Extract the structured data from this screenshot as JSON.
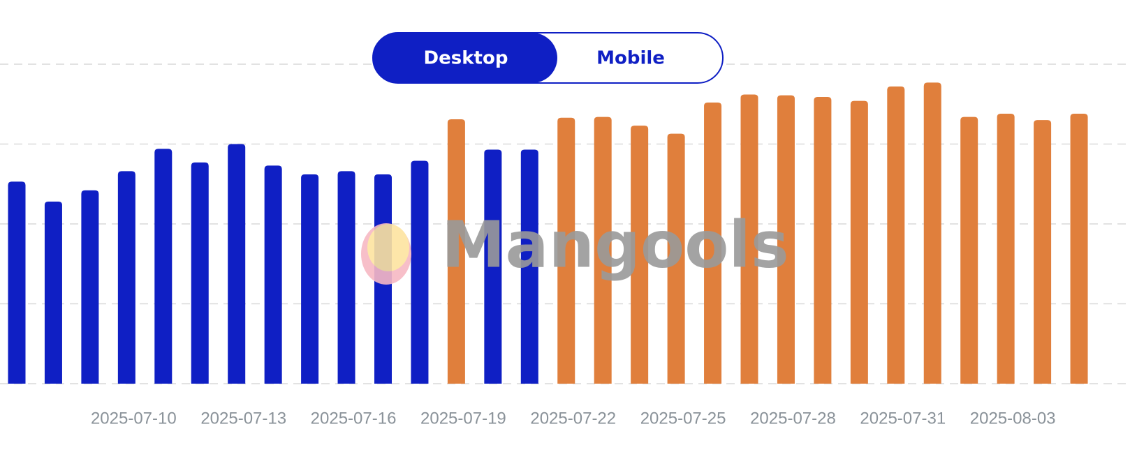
{
  "toggle": {
    "options": [
      "Desktop",
      "Mobile"
    ],
    "active": 0
  },
  "watermark": "Mangools",
  "chart_data": {
    "type": "bar",
    "categories": [
      null,
      null,
      null,
      "2025-07-10",
      null,
      null,
      "2025-07-13",
      null,
      null,
      "2025-07-16",
      null,
      null,
      "2025-07-19",
      null,
      null,
      "2025-07-22",
      null,
      null,
      "2025-07-25",
      null,
      null,
      "2025-07-28",
      null,
      null,
      "2025-07-31",
      null,
      null,
      "2025-08-03",
      null,
      null
    ],
    "values": [
      2.53,
      2.28,
      2.42,
      2.66,
      2.94,
      2.77,
      3.0,
      2.73,
      2.62,
      2.66,
      2.62,
      2.79,
      3.31,
      2.93,
      2.93,
      3.33,
      3.34,
      3.23,
      3.13,
      3.52,
      3.62,
      3.61,
      3.59,
      3.54,
      3.72,
      3.77,
      3.34,
      3.38,
      3.3,
      3.38
    ],
    "colors": [
      "#0f1fc4",
      "#0f1fc4",
      "#0f1fc4",
      "#0f1fc4",
      "#0f1fc4",
      "#0f1fc4",
      "#0f1fc4",
      "#0f1fc4",
      "#0f1fc4",
      "#0f1fc4",
      "#0f1fc4",
      "#0f1fc4",
      "#e07f3c",
      "#0f1fc4",
      "#0f1fc4",
      "#e07f3c",
      "#e07f3c",
      "#e07f3c",
      "#e07f3c",
      "#e07f3c",
      "#e07f3c",
      "#e07f3c",
      "#e07f3c",
      "#e07f3c",
      "#e07f3c",
      "#e07f3c",
      "#e07f3c",
      "#e07f3c",
      "#e07f3c",
      "#e07f3c"
    ],
    "ylim": [
      0,
      4
    ],
    "yticks": [
      0,
      1,
      2,
      3,
      4
    ],
    "grid": true
  }
}
